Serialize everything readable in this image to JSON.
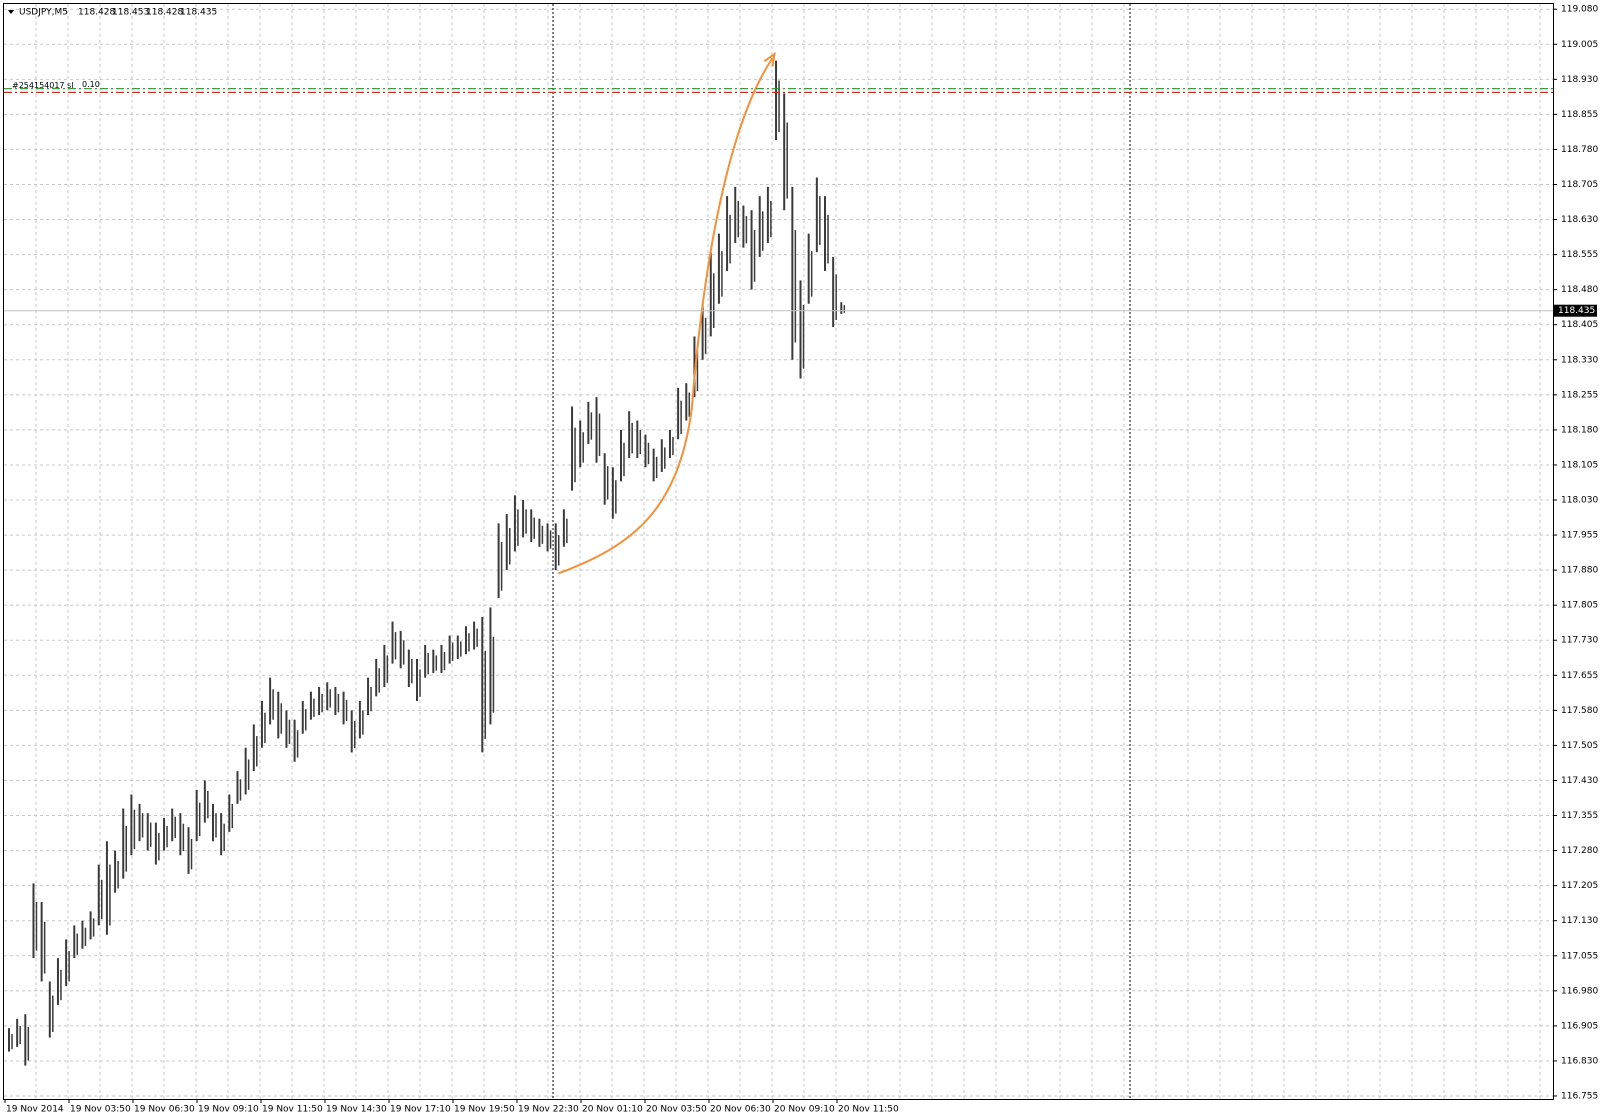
{
  "chart_data": {
    "type": "ohlc",
    "symbol": "USDJPY,M5",
    "last_bar": {
      "open": 118.428,
      "high": 118.453,
      "low": 118.428,
      "close": 118.435
    },
    "x_labels": [
      "19 Nov 2014",
      "19 Nov 03:50",
      "19 Nov 06:30",
      "19 Nov 09:10",
      "19 Nov 11:50",
      "19 Nov 14:30",
      "19 Nov 17:10",
      "19 Nov 19:50",
      "19 Nov 22:30",
      "20 Nov 01:10",
      "20 Nov 03:50",
      "20 Nov 06:30",
      "20 Nov 09:10",
      "20 Nov 11:50"
    ],
    "high": [
      116.9,
      116.92,
      116.93,
      117.21,
      117.17,
      117.0,
      117.05,
      117.09,
      117.12,
      117.13,
      117.15,
      117.25,
      117.3,
      117.28,
      117.37,
      117.4,
      117.38,
      117.36,
      117.34,
      117.35,
      117.37,
      117.36,
      117.33,
      117.41,
      117.43,
      117.38,
      117.36,
      117.4,
      117.45,
      117.5,
      117.55,
      117.6,
      117.65,
      117.62,
      117.58,
      117.56,
      117.6,
      117.62,
      117.63,
      117.64,
      117.63,
      117.62,
      117.58,
      117.6,
      117.65,
      117.69,
      117.72,
      117.77,
      117.75,
      117.71,
      117.69,
      117.72,
      117.71,
      117.72,
      117.74,
      117.74,
      117.76,
      117.77,
      117.78,
      117.8,
      117.98,
      118.0,
      118.04,
      118.03,
      118.01,
      117.99,
      117.98,
      117.98,
      118.01,
      118.23,
      118.2,
      118.24,
      118.25,
      118.13,
      118.1,
      118.18,
      118.22,
      118.2,
      118.17,
      118.14,
      118.16,
      118.18,
      118.27,
      118.28,
      118.38,
      118.45,
      118.56,
      118.6,
      118.68,
      118.7,
      118.66,
      118.65,
      118.68,
      118.7,
      118.97,
      118.9,
      118.7,
      118.5,
      118.6,
      118.72,
      118.68,
      118.55,
      118.453
    ],
    "low": [
      116.85,
      116.86,
      116.82,
      117.05,
      117.0,
      116.88,
      116.95,
      116.99,
      117.05,
      117.07,
      117.09,
      117.12,
      117.1,
      117.19,
      117.22,
      117.27,
      117.3,
      117.28,
      117.25,
      117.28,
      117.3,
      117.27,
      117.23,
      117.3,
      117.34,
      117.3,
      117.27,
      117.32,
      117.38,
      117.4,
      117.45,
      117.5,
      117.55,
      117.52,
      117.5,
      117.47,
      117.53,
      117.56,
      117.57,
      117.58,
      117.57,
      117.55,
      117.49,
      117.52,
      117.57,
      117.61,
      117.63,
      117.68,
      117.67,
      117.63,
      117.6,
      117.65,
      117.66,
      117.66,
      117.68,
      117.69,
      117.7,
      117.71,
      117.49,
      117.55,
      117.82,
      117.88,
      117.92,
      117.95,
      117.94,
      117.93,
      117.92,
      117.88,
      117.93,
      118.05,
      118.1,
      118.15,
      118.11,
      118.02,
      117.99,
      118.07,
      118.12,
      118.12,
      118.1,
      118.07,
      118.09,
      118.12,
      118.16,
      118.2,
      118.25,
      118.33,
      118.38,
      118.45,
      118.52,
      118.58,
      118.57,
      118.48,
      118.55,
      118.58,
      118.8,
      118.65,
      118.33,
      118.29,
      118.45,
      118.56,
      118.52,
      118.4,
      118.428
    ],
    "color": "#3a3a3a",
    "ylim": [
      116.755,
      119.08
    ],
    "yticks": [
      116.755,
      {
        "value": 116.83,
        "label": "116.830"
      },
      116.905,
      {
        "value": 116.98,
        "label": "116.980"
      },
      117.055,
      {
        "value": 117.13,
        "label": "117.130"
      },
      117.205,
      {
        "value": 117.28,
        "label": "117.280"
      },
      117.355,
      {
        "value": 117.43,
        "label": "117.430"
      },
      117.505,
      {
        "value": 117.58,
        "label": "117.580"
      },
      117.655,
      {
        "value": 117.73,
        "label": "117.730"
      },
      117.805,
      {
        "value": 117.88,
        "label": "117.880"
      },
      117.955,
      {
        "value": 118.03,
        "label": "118.030"
      },
      118.105,
      {
        "value": 118.18,
        "label": "118.180"
      },
      118.255,
      {
        "value": 118.33,
        "label": "118.330"
      },
      118.405,
      {
        "value": 118.48,
        "label": "118.480"
      },
      118.555,
      {
        "value": 118.63,
        "label": "118.630"
      },
      118.705,
      {
        "value": 118.78,
        "label": "118.780"
      },
      118.855,
      {
        "value": 118.93,
        "label": "118.930"
      },
      119.005,
      {
        "value": 119.08,
        "label": "119.080"
      }
    ],
    "grid": true,
    "levels": [
      {
        "price": 118.91,
        "color": "#2e8b2e"
      },
      {
        "price": 118.902,
        "color": "#d03020",
        "text": "#254154017 sl",
        "lots": "0.10"
      }
    ]
  }
}
